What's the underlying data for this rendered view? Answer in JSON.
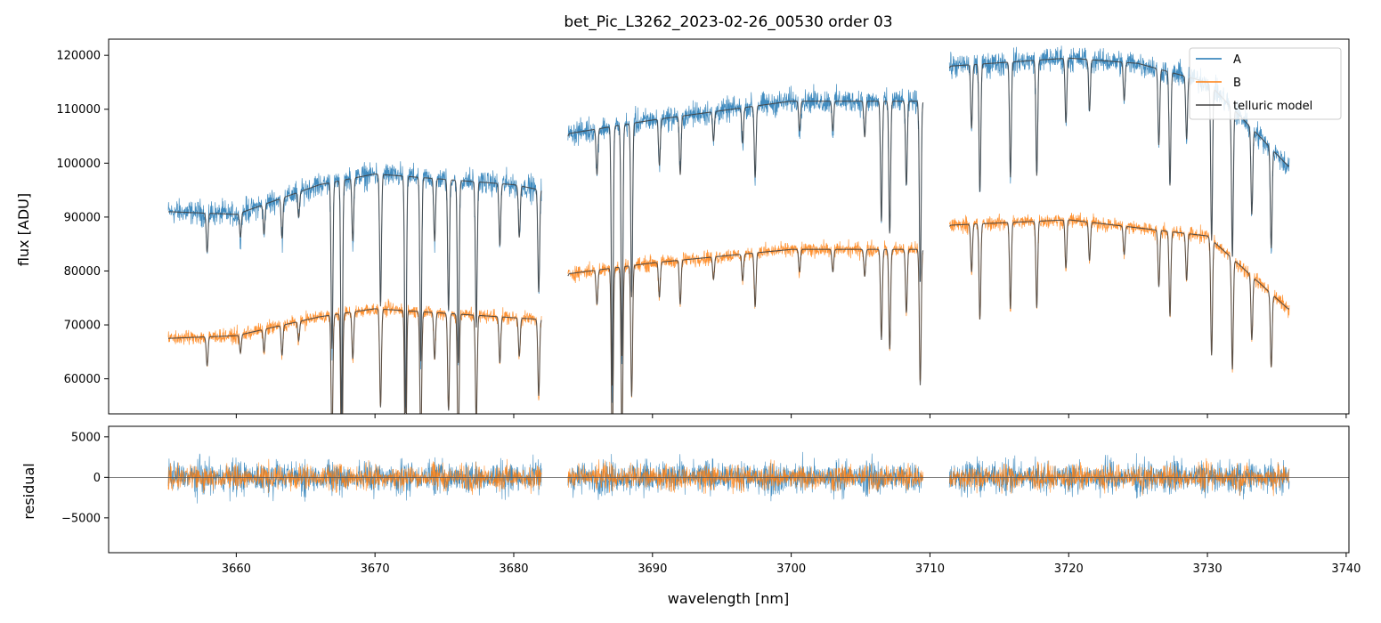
{
  "chart_data": [
    {
      "type": "line",
      "panel": "top",
      "title": "bet_Pic_L3262_2023-02-26_00530  order 03",
      "xlabel": "",
      "ylabel": "flux [ADU]",
      "xlim": [
        3650.8,
        3740.2
      ],
      "ylim": [
        53500,
        123000
      ],
      "yticks": [
        60000,
        70000,
        80000,
        90000,
        100000,
        110000,
        120000
      ],
      "ytick_labels": [
        "60000",
        "70000",
        "80000",
        "90000",
        "100000",
        "110000",
        "120000"
      ],
      "legend_position": "top-right",
      "legend": [
        "A",
        "B",
        "telluric model"
      ],
      "segments": [
        [
          3655.1,
          3682.0
        ],
        [
          3683.9,
          3709.5
        ],
        [
          3711.4,
          3735.9
        ]
      ],
      "series": [
        {
          "name": "A",
          "color": "#1f77b4",
          "continuum": [
            [
              3655.1,
              91000
            ],
            [
              3660,
              90500
            ],
            [
              3666,
              96000
            ],
            [
              3670,
              98000
            ],
            [
              3680,
              96000
            ],
            [
              3682,
              95000
            ],
            [
              3684,
              105500
            ],
            [
              3690,
              108000
            ],
            [
              3700,
              111500
            ],
            [
              3709.5,
              111500
            ],
            [
              3711.5,
              118000
            ],
            [
              3720,
              119500
            ],
            [
              3725,
              118500
            ],
            [
              3730,
              115000
            ],
            [
              3735.8,
              99500
            ]
          ],
          "noise": 1800
        },
        {
          "name": "B",
          "color": "#ff7f0e",
          "continuum": [
            [
              3655.1,
              67500
            ],
            [
              3660,
              68000
            ],
            [
              3666,
              71500
            ],
            [
              3670,
              73000
            ],
            [
              3682,
              71000
            ],
            [
              3684,
              79500
            ],
            [
              3690,
              81500
            ],
            [
              3700,
              84000
            ],
            [
              3709.5,
              84000
            ],
            [
              3711.5,
              88500
            ],
            [
              3720,
              89500
            ],
            [
              3730,
              86500
            ],
            [
              3735.8,
              73000
            ]
          ],
          "noise": 1100
        },
        {
          "name": "telluric model",
          "color": "#404040"
        }
      ],
      "absorption_lines": [
        {
          "wl": 3657.9,
          "depth": 0.08
        },
        {
          "wl": 3660.3,
          "depth": 0.05
        },
        {
          "wl": 3662.0,
          "depth": 0.06
        },
        {
          "wl": 3663.3,
          "depth": 0.08
        },
        {
          "wl": 3664.5,
          "depth": 0.05
        },
        {
          "wl": 3666.9,
          "depth": 0.32
        },
        {
          "wl": 3667.6,
          "depth": 0.45
        },
        {
          "wl": 3668.4,
          "depth": 0.12
        },
        {
          "wl": 3670.4,
          "depth": 0.25
        },
        {
          "wl": 3672.2,
          "depth": 0.45
        },
        {
          "wl": 3673.3,
          "depth": 0.35
        },
        {
          "wl": 3674.3,
          "depth": 0.12
        },
        {
          "wl": 3675.3,
          "depth": 0.25
        },
        {
          "wl": 3676.0,
          "depth": 0.35
        },
        {
          "wl": 3677.3,
          "depth": 0.28
        },
        {
          "wl": 3679.0,
          "depth": 0.12
        },
        {
          "wl": 3680.4,
          "depth": 0.1
        },
        {
          "wl": 3681.8,
          "depth": 0.2
        },
        {
          "wl": 3686.0,
          "depth": 0.08
        },
        {
          "wl": 3687.1,
          "depth": 0.45
        },
        {
          "wl": 3687.8,
          "depth": 0.4
        },
        {
          "wl": 3688.5,
          "depth": 0.3
        },
        {
          "wl": 3690.5,
          "depth": 0.08
        },
        {
          "wl": 3692.0,
          "depth": 0.1
        },
        {
          "wl": 3694.4,
          "depth": 0.05
        },
        {
          "wl": 3696.5,
          "depth": 0.06
        },
        {
          "wl": 3697.4,
          "depth": 0.12
        },
        {
          "wl": 3700.6,
          "depth": 0.05
        },
        {
          "wl": 3703.0,
          "depth": 0.05
        },
        {
          "wl": 3705.3,
          "depth": 0.06
        },
        {
          "wl": 3706.5,
          "depth": 0.2
        },
        {
          "wl": 3707.1,
          "depth": 0.22
        },
        {
          "wl": 3708.3,
          "depth": 0.14
        },
        {
          "wl": 3709.3,
          "depth": 0.3
        },
        {
          "wl": 3713.0,
          "depth": 0.1
        },
        {
          "wl": 3713.6,
          "depth": 0.2
        },
        {
          "wl": 3715.8,
          "depth": 0.18
        },
        {
          "wl": 3717.7,
          "depth": 0.18
        },
        {
          "wl": 3719.8,
          "depth": 0.1
        },
        {
          "wl": 3721.5,
          "depth": 0.08
        },
        {
          "wl": 3724.0,
          "depth": 0.06
        },
        {
          "wl": 3726.5,
          "depth": 0.12
        },
        {
          "wl": 3727.3,
          "depth": 0.18
        },
        {
          "wl": 3728.5,
          "depth": 0.1
        },
        {
          "wl": 3730.3,
          "depth": 0.25
        },
        {
          "wl": 3731.8,
          "depth": 0.25
        },
        {
          "wl": 3733.2,
          "depth": 0.15
        },
        {
          "wl": 3734.6,
          "depth": 0.18
        }
      ]
    },
    {
      "type": "line",
      "panel": "bottom",
      "title": "",
      "xlabel": "wavelength [nm]",
      "ylabel": "residual",
      "xlim": [
        3650.8,
        3740.2
      ],
      "ylim": [
        -9300,
        6300
      ],
      "xticks": [
        3660,
        3670,
        3680,
        3690,
        3700,
        3710,
        3720,
        3730,
        3740
      ],
      "xtick_labels": [
        "3660",
        "3670",
        "3680",
        "3690",
        "3700",
        "3710",
        "3720",
        "3730",
        "3740"
      ],
      "yticks": [
        -5000,
        0,
        5000
      ],
      "ytick_labels": [
        "−5000",
        "0",
        "5000"
      ],
      "zero_line": 0,
      "series": [
        {
          "name": "A",
          "color": "#1f77b4",
          "noise": 1700
        },
        {
          "name": "B",
          "color": "#ff7f0e",
          "noise": 1300
        }
      ]
    }
  ]
}
